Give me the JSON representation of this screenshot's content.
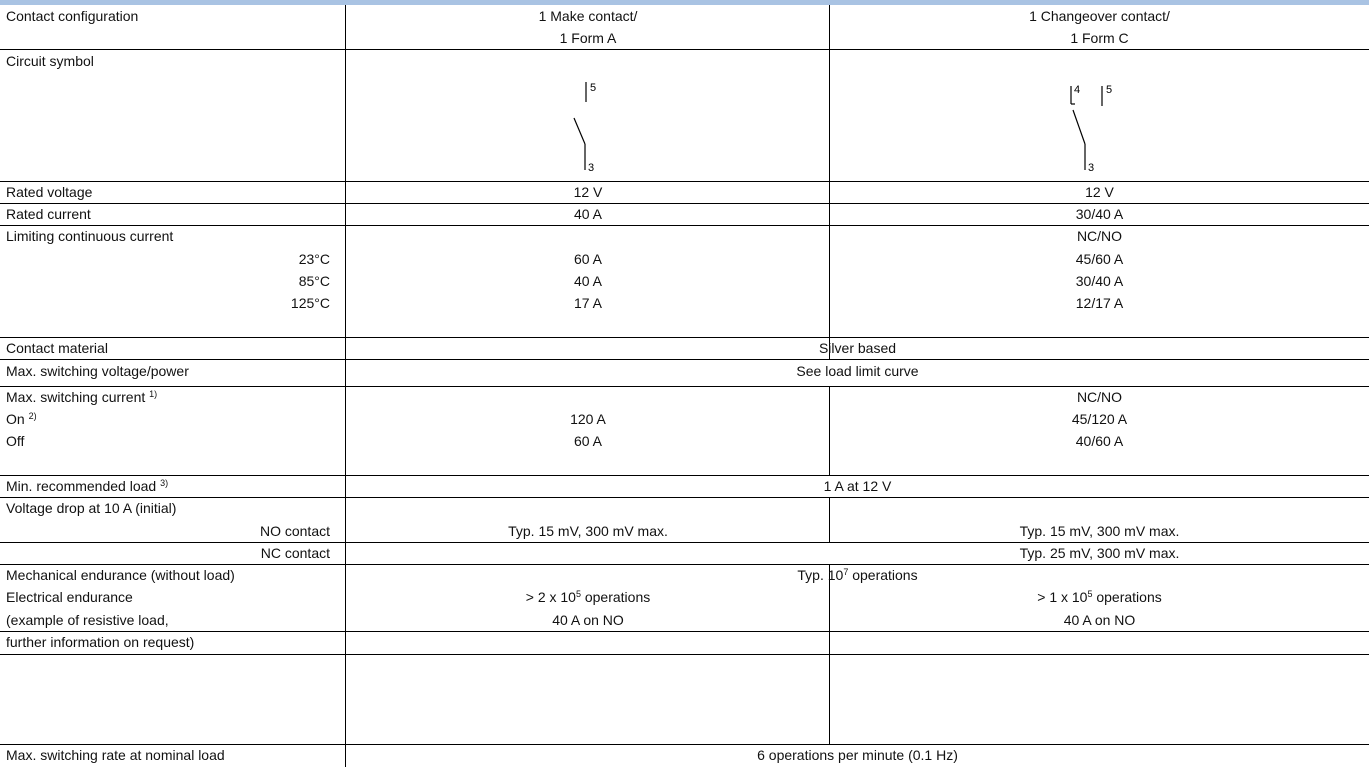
{
  "rows": {
    "contact_configuration": {
      "label": "Contact configuration",
      "make_line1": "1 Make contact/",
      "make_line2": "1 Form A",
      "changeover_line1": "1 Changeover contact/",
      "changeover_line2": "1 Form C"
    },
    "circuit_symbol": {
      "label": "Circuit symbol",
      "make_pin_top": "5",
      "make_pin_bottom": "3",
      "changeover_pin_nc": "4",
      "changeover_pin_no": "5",
      "changeover_pin_common": "3"
    },
    "rated_voltage": {
      "label": "Rated voltage",
      "make": "12 V",
      "changeover": "12 V"
    },
    "rated_current": {
      "label": "Rated current",
      "make": "40 A",
      "changeover": "30/40 A"
    },
    "limiting_continuous_current": {
      "label": "Limiting continuous current",
      "changeover_header": "NC/NO",
      "temps": [
        {
          "temp": "23°C",
          "make": "60 A",
          "changeover": "45/60 A"
        },
        {
          "temp": "85°C",
          "make": "40 A",
          "changeover": "30/40 A"
        },
        {
          "temp": "125°C",
          "make": "17 A",
          "changeover": "12/17 A"
        }
      ]
    },
    "contact_material": {
      "label": "Contact material",
      "value": "Silver based"
    },
    "max_switching_voltage_power": {
      "label": "Max. switching voltage/power",
      "value": "See load limit curve"
    },
    "max_switching_current": {
      "label": "Max. switching current",
      "label_sup": "1)",
      "changeover_header": "NC/NO",
      "on_label": "On",
      "on_sup": "2)",
      "on_make": "120 A",
      "on_changeover": "45/120 A",
      "off_label": "Off",
      "off_make": "60 A",
      "off_changeover": "40/60 A"
    },
    "min_recommended_load": {
      "label": "Min. recommended load",
      "label_sup": "3)",
      "value": "1 A at 12 V"
    },
    "voltage_drop": {
      "label": "Voltage drop at 10 A (initial)",
      "no_label": "NO contact",
      "no_make": "Typ. 15 mV, 300 mV max.",
      "no_changeover": "Typ. 15 mV, 300 mV max.",
      "nc_label": "NC contact",
      "nc_changeover": "Typ. 25 mV, 300 mV max."
    },
    "mechanical_endurance": {
      "label": "Mechanical endurance (without load)",
      "value_prefix": "Typ. 10",
      "value_exp": "7",
      "value_suffix": " operations"
    },
    "electrical_endurance": {
      "label_line1": "Electrical endurance",
      "label_line2": "(example of resistive load,",
      "label_line3": "further information on request)",
      "make_prefix": "> 2 x 10",
      "make_exp": "5",
      "make_suffix": " operations",
      "make_load": "40 A on NO",
      "changeover_prefix": "> 1 x 10",
      "changeover_exp": "5",
      "changeover_suffix": " operations",
      "changeover_load": "40 A on NO"
    },
    "max_switching_rate": {
      "label": "Max. switching rate at nominal load",
      "value": "6 operations per minute (0.1 Hz)"
    }
  }
}
